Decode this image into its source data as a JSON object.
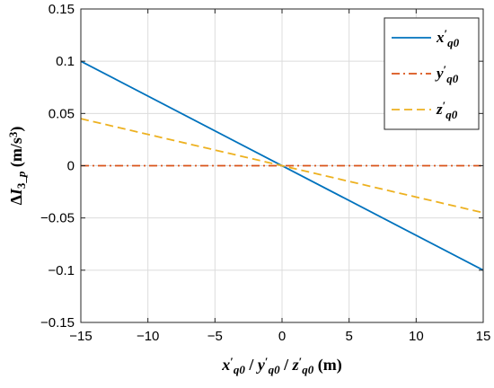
{
  "chart_data": {
    "type": "line",
    "xlabel": {
      "parts": [
        {
          "t": "x",
          "italic": true
        },
        {
          "t": "′",
          "sup": true
        },
        {
          "t": "q0",
          "sub": true,
          "italic": true
        },
        {
          "t": " / "
        },
        {
          "t": "y",
          "italic": true
        },
        {
          "t": "′",
          "sup": true
        },
        {
          "t": "q0",
          "sub": true,
          "italic": true
        },
        {
          "t": " / "
        },
        {
          "t": "z",
          "italic": true
        },
        {
          "t": "′",
          "sup": true
        },
        {
          "t": "q0",
          "sub": true,
          "italic": true
        },
        {
          "t": "  (m)"
        }
      ]
    },
    "ylabel": {
      "parts": [
        {
          "t": "Δ"
        },
        {
          "t": "I",
          "italic": true
        },
        {
          "t": "3_",
          "sub": true
        },
        {
          "t": "p",
          "sub": true,
          "italic": true
        },
        {
          "t": "  (m/s"
        },
        {
          "t": "3",
          "sup": true
        },
        {
          "t": ")"
        }
      ]
    },
    "xlim": [
      -15,
      15
    ],
    "ylim": [
      -0.15,
      0.15
    ],
    "xticks": [
      -15,
      -10,
      -5,
      0,
      5,
      10,
      15
    ],
    "xtick_labels": [
      "−15",
      "−10",
      "−5",
      "0",
      "5",
      "10",
      "15"
    ],
    "yticks": [
      -0.15,
      -0.1,
      -0.05,
      0,
      0.05,
      0.1,
      0.15
    ],
    "ytick_labels": [
      "−0.15",
      "−0.1",
      "−0.05",
      "0",
      "0.05",
      "0.1",
      "0.15"
    ],
    "grid": true,
    "legend_position": "top-right",
    "series": [
      {
        "name": "x′q0",
        "legend": {
          "base": "x",
          "sub": "q0"
        },
        "color": "#0072BD",
        "dash": "solid",
        "x": [
          -15,
          15
        ],
        "y": [
          0.1,
          -0.1
        ]
      },
      {
        "name": "y′q0",
        "legend": {
          "base": "y",
          "sub": "q0"
        },
        "color": "#D95319",
        "dash": "dashdot",
        "x": [
          -15,
          15
        ],
        "y": [
          0,
          0
        ]
      },
      {
        "name": "z′q0",
        "legend": {
          "base": "z",
          "sub": "q0"
        },
        "color": "#EDB120",
        "dash": "dashed",
        "x": [
          -15,
          15
        ],
        "y": [
          0.045,
          -0.045
        ]
      }
    ]
  }
}
